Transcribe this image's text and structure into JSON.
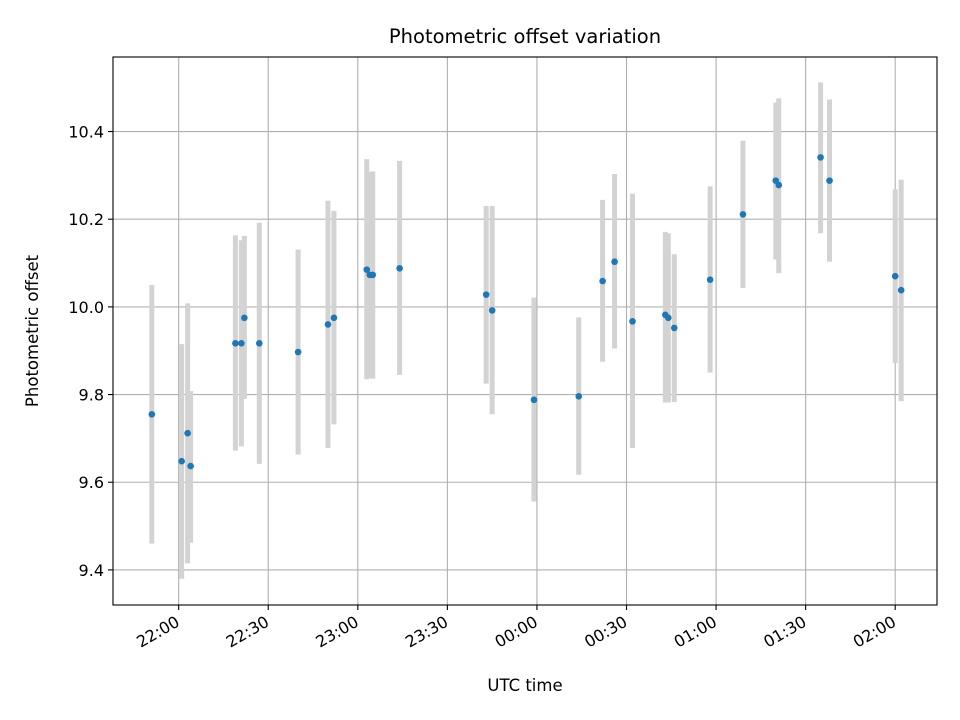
{
  "chart_data": {
    "type": "scatter",
    "title": "Photometric offset variation",
    "xlabel": "UTC time",
    "ylabel": "Photometric offset",
    "x_axis_kind": "time",
    "x_ticks": [
      "22:00",
      "22:30",
      "23:00",
      "23:30",
      "00:00",
      "00:30",
      "01:00",
      "01:30",
      "02:00"
    ],
    "y_ticks": [
      "9.4",
      "9.6",
      "9.8",
      "10.0",
      "10.2",
      "10.4"
    ],
    "xlim": [
      "21:38",
      "02:14"
    ],
    "ylim": [
      9.32,
      10.57
    ],
    "grid": true,
    "legend": "none",
    "colors": {
      "point": "#1f77b4",
      "errorbar": "#d3d3d3",
      "grid": "#b0b0b0"
    },
    "series": [
      {
        "points": [
          {
            "x": "21:51",
            "y": 9.755,
            "yerr_low": 9.46,
            "yerr_high": 10.05
          },
          {
            "x": "22:01",
            "y": 9.648,
            "yerr_low": 9.38,
            "yerr_high": 9.915
          },
          {
            "x": "22:03",
            "y": 9.712,
            "yerr_low": 9.415,
            "yerr_high": 10.008
          },
          {
            "x": "22:04",
            "y": 9.637,
            "yerr_low": 9.462,
            "yerr_high": 9.808
          },
          {
            "x": "22:19",
            "y": 9.917,
            "yerr_low": 9.672,
            "yerr_high": 10.163
          },
          {
            "x": "22:21",
            "y": 9.917,
            "yerr_low": 9.682,
            "yerr_high": 10.152
          },
          {
            "x": "22:22",
            "y": 9.975,
            "yerr_low": 9.79,
            "yerr_high": 10.162
          },
          {
            "x": "22:27",
            "y": 9.917,
            "yerr_low": 9.642,
            "yerr_high": 10.192
          },
          {
            "x": "22:40",
            "y": 9.897,
            "yerr_low": 9.663,
            "yerr_high": 10.131
          },
          {
            "x": "22:50",
            "y": 9.96,
            "yerr_low": 9.678,
            "yerr_high": 10.242
          },
          {
            "x": "22:52",
            "y": 9.975,
            "yerr_low": 9.732,
            "yerr_high": 10.219
          },
          {
            "x": "23:03",
            "y": 10.085,
            "yerr_low": 9.835,
            "yerr_high": 10.337
          },
          {
            "x": "23:04",
            "y": 10.073,
            "yerr_low": 9.838,
            "yerr_high": 10.308
          },
          {
            "x": "23:05",
            "y": 10.073,
            "yerr_low": 9.836,
            "yerr_high": 10.309
          },
          {
            "x": "23:14",
            "y": 10.088,
            "yerr_low": 9.845,
            "yerr_high": 10.333
          },
          {
            "x": "23:43",
            "y": 10.028,
            "yerr_low": 9.825,
            "yerr_high": 10.23
          },
          {
            "x": "23:45",
            "y": 9.992,
            "yerr_low": 9.755,
            "yerr_high": 10.23
          },
          {
            "x": "23:59",
            "y": 9.788,
            "yerr_low": 9.556,
            "yerr_high": 10.021
          },
          {
            "x": "00:14",
            "y": 9.796,
            "yerr_low": 9.617,
            "yerr_high": 9.976
          },
          {
            "x": "00:22",
            "y": 10.059,
            "yerr_low": 9.875,
            "yerr_high": 10.244
          },
          {
            "x": "00:26",
            "y": 10.103,
            "yerr_low": 9.905,
            "yerr_high": 10.303
          },
          {
            "x": "00:32",
            "y": 9.967,
            "yerr_low": 9.678,
            "yerr_high": 10.258
          },
          {
            "x": "00:43",
            "y": 9.982,
            "yerr_low": 9.782,
            "yerr_high": 10.171
          },
          {
            "x": "00:44",
            "y": 9.975,
            "yerr_low": 9.782,
            "yerr_high": 10.168
          },
          {
            "x": "00:46",
            "y": 9.952,
            "yerr_low": 9.783,
            "yerr_high": 10.12
          },
          {
            "x": "00:58",
            "y": 10.062,
            "yerr_low": 9.85,
            "yerr_high": 10.275
          },
          {
            "x": "01:09",
            "y": 10.211,
            "yerr_low": 10.043,
            "yerr_high": 10.379
          },
          {
            "x": "01:20",
            "y": 10.288,
            "yerr_low": 10.108,
            "yerr_high": 10.466
          },
          {
            "x": "01:21",
            "y": 10.278,
            "yerr_low": 10.077,
            "yerr_high": 10.476
          },
          {
            "x": "01:35",
            "y": 10.341,
            "yerr_low": 10.168,
            "yerr_high": 10.512
          },
          {
            "x": "01:38",
            "y": 10.288,
            "yerr_low": 10.103,
            "yerr_high": 10.473
          },
          {
            "x": "02:00",
            "y": 10.07,
            "yerr_low": 9.872,
            "yerr_high": 10.268
          },
          {
            "x": "02:02",
            "y": 10.038,
            "yerr_low": 9.785,
            "yerr_high": 10.29
          }
        ]
      }
    ]
  }
}
